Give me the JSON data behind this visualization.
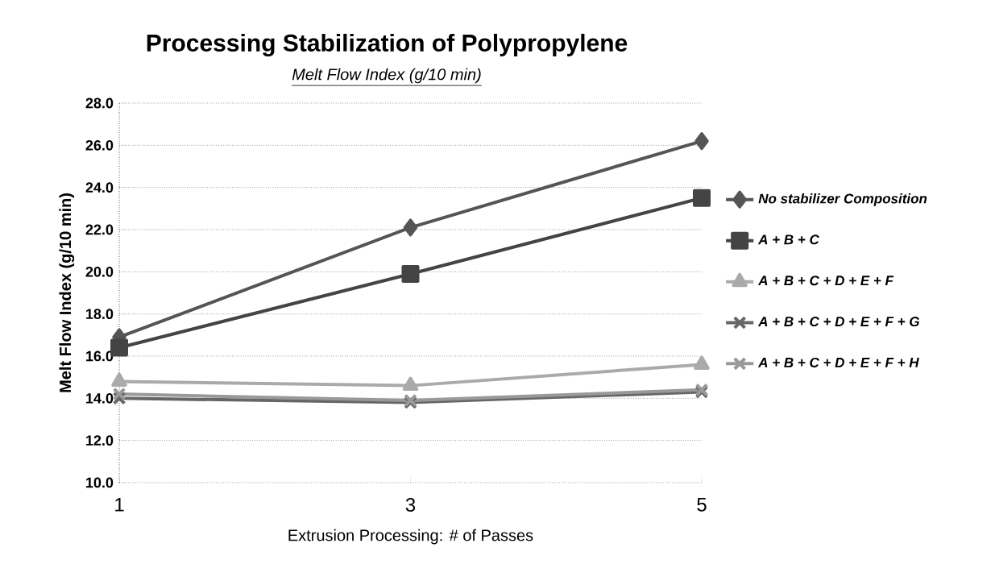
{
  "chart_data": {
    "type": "line",
    "title": "Processing Stabilization of Polypropylene",
    "subtitle": "Melt Flow Index (g/10 min)",
    "xlabel": "Extrusion Processing: # of Passes",
    "ylabel": "Melt Flow Index (g/10 min)",
    "categories": [
      "1",
      "3",
      "5"
    ],
    "series": [
      {
        "name": "No stabilizer Composition",
        "color": "#555555",
        "marker": "diamond",
        "values": [
          16.9,
          22.1,
          26.2
        ]
      },
      {
        "name": "A + B + C",
        "color": "#444444",
        "marker": "square",
        "values": [
          16.4,
          19.9,
          23.5
        ]
      },
      {
        "name": "A + B + C + D + E + F",
        "color": "#aaaaaa",
        "marker": "triangle",
        "values": [
          14.8,
          14.6,
          15.6
        ]
      },
      {
        "name": "A + B + C + D + E + F + G",
        "color": "#666666",
        "marker": "cross",
        "values": [
          14.0,
          13.8,
          14.3
        ]
      },
      {
        "name": "A + B + C + D + E + F + H",
        "color": "#999999",
        "marker": "cross",
        "values": [
          14.2,
          13.9,
          14.4
        ]
      }
    ],
    "ylim": [
      10,
      28
    ],
    "yticks": [
      {
        "value": 10,
        "label": "10.0"
      },
      {
        "value": 12,
        "label": "12.0"
      },
      {
        "value": 14,
        "label": "14.0"
      },
      {
        "value": 16,
        "label": "16.0"
      },
      {
        "value": 18,
        "label": "18.0"
      },
      {
        "value": 20,
        "label": "20.0"
      },
      {
        "value": 22,
        "label": "22.0"
      },
      {
        "value": 24,
        "label": "24.0"
      },
      {
        "value": 26,
        "label": "26.0"
      },
      {
        "value": 28,
        "label": "28.0"
      }
    ],
    "grid": "y",
    "legend": "right",
    "line_style": "solid"
  }
}
